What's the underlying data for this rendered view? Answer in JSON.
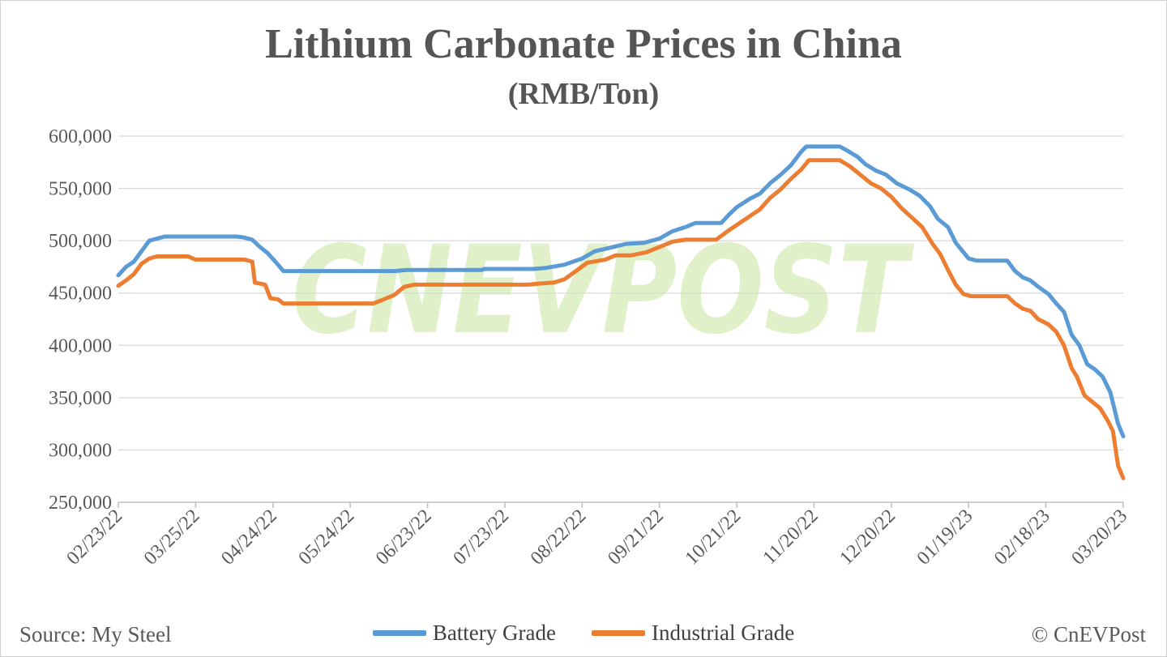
{
  "chart_data": {
    "type": "line",
    "title": "Lithium Carbonate Prices in China",
    "subtitle": "(RMB/Ton)",
    "source": "Source: My Steel",
    "credit": "© CnEVPost",
    "watermark": "CNEVPOST",
    "ylim": [
      250000,
      600000
    ],
    "yticks": [
      250000,
      300000,
      350000,
      400000,
      450000,
      500000,
      550000,
      600000
    ],
    "ytick_labels": [
      "250,000",
      "300,000",
      "350,000",
      "400,000",
      "450,000",
      "500,000",
      "550,000",
      "600,000"
    ],
    "xlim": [
      "2022-02-23",
      "2023-03-20"
    ],
    "xtick_labels": [
      "02/23/22",
      "03/25/22",
      "04/24/22",
      "05/24/22",
      "06/23/22",
      "07/23/22",
      "08/22/22",
      "09/21/22",
      "10/21/22",
      "11/20/22",
      "12/20/22",
      "01/19/23",
      "02/18/23",
      "03/20/23"
    ],
    "xtick_dates": [
      "2022-02-23",
      "2022-03-25",
      "2022-04-24",
      "2022-05-24",
      "2022-06-23",
      "2022-07-23",
      "2022-08-22",
      "2022-09-21",
      "2022-10-21",
      "2022-11-20",
      "2022-12-20",
      "2023-01-19",
      "2023-02-18",
      "2023-03-20"
    ],
    "grid": true,
    "legend": "bottom-center",
    "series": [
      {
        "name": "Battery Grade",
        "color": "#5B9BD5",
        "points": [
          [
            "2022-02-23",
            467000
          ],
          [
            "2022-02-26",
            475000
          ],
          [
            "2022-03-01",
            480000
          ],
          [
            "2022-03-04",
            490000
          ],
          [
            "2022-03-07",
            500000
          ],
          [
            "2022-03-10",
            502000
          ],
          [
            "2022-03-13",
            504000
          ],
          [
            "2022-03-25",
            504000
          ],
          [
            "2022-04-10",
            504000
          ],
          [
            "2022-04-13",
            503000
          ],
          [
            "2022-04-16",
            501000
          ],
          [
            "2022-04-19",
            494000
          ],
          [
            "2022-04-22",
            488000
          ],
          [
            "2022-04-26",
            477000
          ],
          [
            "2022-04-28",
            471000
          ],
          [
            "2022-05-24",
            471000
          ],
          [
            "2022-06-10",
            471000
          ],
          [
            "2022-06-15",
            472000
          ],
          [
            "2022-07-14",
            472000
          ],
          [
            "2022-07-15",
            473000
          ],
          [
            "2022-08-03",
            473000
          ],
          [
            "2022-08-08",
            474000
          ],
          [
            "2022-08-15",
            477000
          ],
          [
            "2022-08-22",
            483000
          ],
          [
            "2022-08-27",
            490000
          ],
          [
            "2022-09-03",
            494000
          ],
          [
            "2022-09-08",
            497000
          ],
          [
            "2022-09-15",
            498000
          ],
          [
            "2022-09-21",
            502000
          ],
          [
            "2022-09-26",
            509000
          ],
          [
            "2022-10-01",
            513000
          ],
          [
            "2022-10-05",
            517000
          ],
          [
            "2022-10-15",
            517000
          ],
          [
            "2022-10-18",
            525000
          ],
          [
            "2022-10-21",
            532000
          ],
          [
            "2022-10-26",
            540000
          ],
          [
            "2022-10-30",
            545000
          ],
          [
            "2022-11-03",
            555000
          ],
          [
            "2022-11-07",
            563000
          ],
          [
            "2022-11-11",
            572000
          ],
          [
            "2022-11-15",
            585000
          ],
          [
            "2022-11-17",
            590000
          ],
          [
            "2022-11-30",
            590000
          ],
          [
            "2022-12-03",
            586000
          ],
          [
            "2022-12-07",
            580000
          ],
          [
            "2022-12-10",
            573000
          ],
          [
            "2022-12-14",
            567000
          ],
          [
            "2022-12-18",
            563000
          ],
          [
            "2022-12-22",
            555000
          ],
          [
            "2022-12-27",
            549000
          ],
          [
            "2022-12-31",
            543000
          ],
          [
            "2023-01-04",
            533000
          ],
          [
            "2023-01-07",
            521000
          ],
          [
            "2023-01-11",
            513000
          ],
          [
            "2023-01-14",
            498000
          ],
          [
            "2023-01-19",
            483000
          ],
          [
            "2023-01-22",
            481000
          ],
          [
            "2023-02-03",
            481000
          ],
          [
            "2023-02-06",
            471000
          ],
          [
            "2023-02-09",
            465000
          ],
          [
            "2023-02-12",
            462000
          ],
          [
            "2023-02-15",
            456000
          ],
          [
            "2023-02-19",
            449000
          ],
          [
            "2023-02-22",
            440000
          ],
          [
            "2023-02-25",
            432000
          ],
          [
            "2023-02-28",
            410000
          ],
          [
            "2023-03-03",
            400000
          ],
          [
            "2023-03-06",
            382000
          ],
          [
            "2023-03-09",
            377000
          ],
          [
            "2023-03-12",
            370000
          ],
          [
            "2023-03-15",
            355000
          ],
          [
            "2023-03-18",
            325000
          ],
          [
            "2023-03-20",
            313000
          ]
        ]
      },
      {
        "name": "Industrial Grade",
        "color": "#ED7D31",
        "points": [
          [
            "2022-02-23",
            457000
          ],
          [
            "2022-02-26",
            462000
          ],
          [
            "2022-03-01",
            468000
          ],
          [
            "2022-03-04",
            478000
          ],
          [
            "2022-03-07",
            483000
          ],
          [
            "2022-03-10",
            485000
          ],
          [
            "2022-03-22",
            485000
          ],
          [
            "2022-03-25",
            482000
          ],
          [
            "2022-04-13",
            482000
          ],
          [
            "2022-04-16",
            480000
          ],
          [
            "2022-04-17",
            460000
          ],
          [
            "2022-04-21",
            458000
          ],
          [
            "2022-04-23",
            445000
          ],
          [
            "2022-04-26",
            444000
          ],
          [
            "2022-04-28",
            440000
          ],
          [
            "2022-06-02",
            440000
          ],
          [
            "2022-06-05",
            443000
          ],
          [
            "2022-06-10",
            448000
          ],
          [
            "2022-06-14",
            456000
          ],
          [
            "2022-06-18",
            458000
          ],
          [
            "2022-08-01",
            458000
          ],
          [
            "2022-08-05",
            459000
          ],
          [
            "2022-08-11",
            460000
          ],
          [
            "2022-08-15",
            463000
          ],
          [
            "2022-08-19",
            470000
          ],
          [
            "2022-08-24",
            479000
          ],
          [
            "2022-08-31",
            482000
          ],
          [
            "2022-09-04",
            486000
          ],
          [
            "2022-09-10",
            486000
          ],
          [
            "2022-09-16",
            489000
          ],
          [
            "2022-09-22",
            495000
          ],
          [
            "2022-09-26",
            499000
          ],
          [
            "2022-10-01",
            501000
          ],
          [
            "2022-10-13",
            501000
          ],
          [
            "2022-10-18",
            510000
          ],
          [
            "2022-10-24",
            520000
          ],
          [
            "2022-10-30",
            530000
          ],
          [
            "2022-11-03",
            541000
          ],
          [
            "2022-11-07",
            549000
          ],
          [
            "2022-11-11",
            559000
          ],
          [
            "2022-11-15",
            568000
          ],
          [
            "2022-11-18",
            577000
          ],
          [
            "2022-11-30",
            577000
          ],
          [
            "2022-12-04",
            571000
          ],
          [
            "2022-12-08",
            563000
          ],
          [
            "2022-12-12",
            555000
          ],
          [
            "2022-12-16",
            550000
          ],
          [
            "2022-12-20",
            542000
          ],
          [
            "2022-12-24",
            531000
          ],
          [
            "2022-12-28",
            522000
          ],
          [
            "2023-01-01",
            513000
          ],
          [
            "2023-01-05",
            497000
          ],
          [
            "2023-01-08",
            487000
          ],
          [
            "2023-01-11",
            472000
          ],
          [
            "2023-01-14",
            458000
          ],
          [
            "2023-01-17",
            449000
          ],
          [
            "2023-01-20",
            447000
          ],
          [
            "2023-02-03",
            447000
          ],
          [
            "2023-02-06",
            440000
          ],
          [
            "2023-02-09",
            435000
          ],
          [
            "2023-02-12",
            433000
          ],
          [
            "2023-02-15",
            425000
          ],
          [
            "2023-02-19",
            420000
          ],
          [
            "2023-02-22",
            413000
          ],
          [
            "2023-02-25",
            400000
          ],
          [
            "2023-02-28",
            378000
          ],
          [
            "2023-03-02",
            370000
          ],
          [
            "2023-03-05",
            352000
          ],
          [
            "2023-03-08",
            346000
          ],
          [
            "2023-03-11",
            340000
          ],
          [
            "2023-03-14",
            328000
          ],
          [
            "2023-03-16",
            318000
          ],
          [
            "2023-03-18",
            285000
          ],
          [
            "2023-03-20",
            273000
          ]
        ]
      }
    ]
  }
}
